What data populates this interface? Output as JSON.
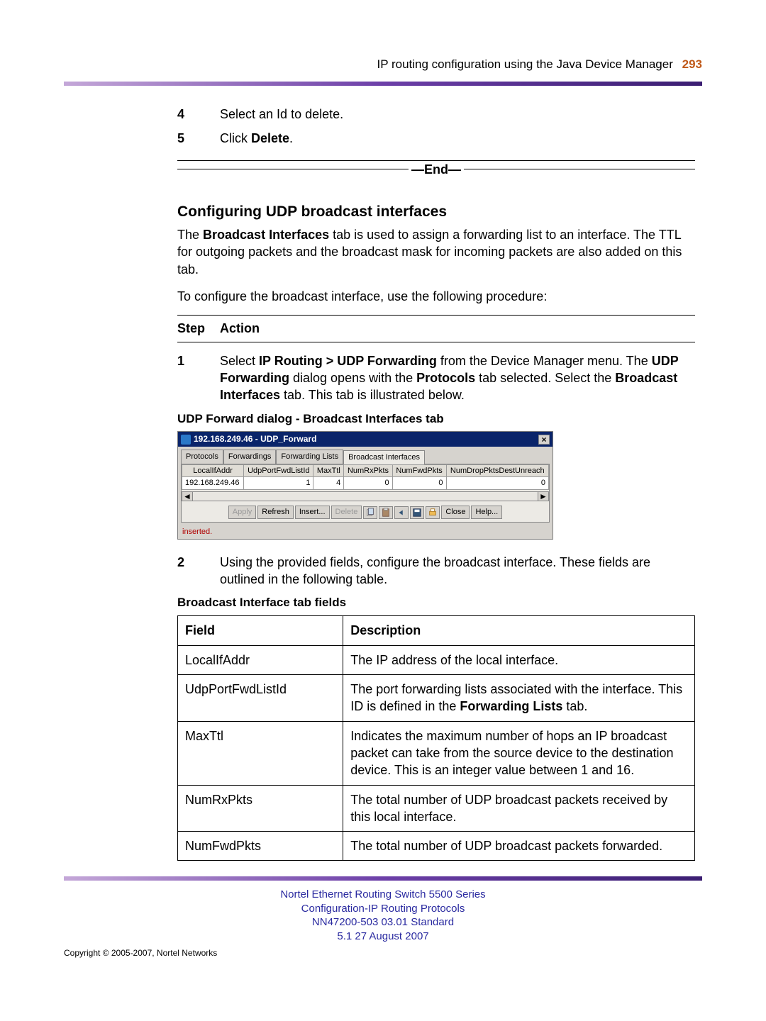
{
  "header": {
    "text": "IP routing configuration using the Java Device Manager",
    "page_number": "293"
  },
  "colors": {
    "rule_gradient_start": "#c4a7d8",
    "rule_gradient_mid": "#6c3fa8",
    "rule_gradient_end": "#3b1e72",
    "header_page_color": "#c05a1a",
    "footer_color": "#2a2aa0"
  },
  "steps_top": [
    {
      "num": "4",
      "text": "Select an Id to delete."
    },
    {
      "num": "5",
      "text_pre": "Click ",
      "bold": "Delete",
      "text_post": "."
    }
  ],
  "end_label": "—End—",
  "section_title": "Configuring UDP broadcast interfaces",
  "para1_parts": [
    "The ",
    "Broadcast Interfaces",
    " tab is used to assign a forwarding list to an interface.  The TTL for outgoing packets and the broadcast mask for incoming packets are also added on this tab."
  ],
  "para2": "To configure the broadcast interface, use the following procedure:",
  "step_header": {
    "c1": "Step",
    "c2": "Action"
  },
  "step1": {
    "num": "1",
    "runs": [
      {
        "t": "Select "
      },
      {
        "t": "IP Routing > UDP Forwarding",
        "b": true
      },
      {
        "t": " from the Device Manager menu.  The "
      },
      {
        "t": "UDP Forwarding",
        "b": true
      },
      {
        "t": " dialog opens with the "
      },
      {
        "t": "Protocols",
        "b": true
      },
      {
        "t": " tab selected.  Select the "
      },
      {
        "t": "Broadcast Interfaces",
        "b": true
      },
      {
        "t": " tab.  This tab is illustrated below."
      }
    ]
  },
  "fig1_caption": "UDP Forward dialog - Broadcast Interfaces tab",
  "shot": {
    "title": "192.168.249.46 - UDP_Forward",
    "tabs": [
      "Protocols",
      "Forwardings",
      "Forwarding Lists",
      "Broadcast Interfaces"
    ],
    "active_tab": 3,
    "columns": [
      "LocalIfAddr",
      "UdpPortFwdListId",
      "MaxTtl",
      "NumRxPkts",
      "NumFwdPkts",
      "NumDropPktsDestUnreach"
    ],
    "row": [
      "192.168.249.46",
      "1",
      "4",
      "0",
      "0",
      "0"
    ],
    "buttons": [
      "Apply",
      "Refresh",
      "Insert...",
      "Delete"
    ],
    "buttons_right": [
      "Close",
      "Help..."
    ],
    "status": "inserted."
  },
  "step2": {
    "num": "2",
    "text": "Using the provided fields, configure the broadcast interface.  These fields are outlined in the following table."
  },
  "table_caption": "Broadcast Interface tab fields",
  "field_table": {
    "headers": [
      "Field",
      "Description"
    ],
    "rows": [
      {
        "f": "LocalIfAddr",
        "d": [
          {
            "t": "The IP address of the local interface."
          }
        ]
      },
      {
        "f": "UdpPortFwdListId",
        "d": [
          {
            "t": "The port forwarding lists associated with the interface.  This ID is defined in the "
          },
          {
            "t": "Forwarding Lists",
            "b": true
          },
          {
            "t": " tab."
          }
        ]
      },
      {
        "f": "MaxTtl",
        "d": [
          {
            "t": "Indicates the maximum number of hops an IP broadcast packet can take from the source device to the destination device. This is an integer value between 1 and 16."
          }
        ]
      },
      {
        "f": "NumRxPkts",
        "d": [
          {
            "t": "The total number of UDP broadcast packets received by this local interface."
          }
        ]
      },
      {
        "f": "NumFwdPkts",
        "d": [
          {
            "t": "The total number of UDP broadcast packets forwarded."
          }
        ]
      }
    ]
  },
  "footer": {
    "l1": "Nortel Ethernet Routing Switch 5500 Series",
    "l2": "Configuration-IP Routing Protocols",
    "l3": "NN47200-503   03.01   Standard",
    "l4": "5.1   27 August 2007"
  },
  "copyright": "Copyright © 2005-2007, Nortel Networks"
}
